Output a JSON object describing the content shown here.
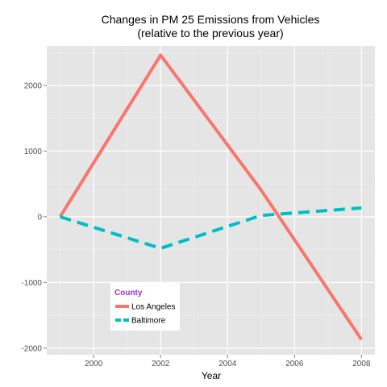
{
  "chart_data": {
    "type": "line",
    "title": "Changes in PM 25 Emissions from Vehicles",
    "subtitle": "(relative to the previous year)",
    "xlabel": "Year",
    "ylabel": "",
    "xlim": [
      1998.6,
      2008.4
    ],
    "ylim": [
      -2100,
      2600
    ],
    "x_ticks": [
      2000,
      2002,
      2004,
      2006,
      2008
    ],
    "y_ticks": [
      -2000,
      -1000,
      0,
      1000,
      2000
    ],
    "grid": true,
    "legend": {
      "title": "County",
      "placement": "bottom-left-inside"
    },
    "x": [
      1999,
      2002,
      2005,
      2008
    ],
    "series": [
      {
        "name": "Los Angeles",
        "values": [
          0,
          2460,
          408,
          -1870
        ],
        "color": "#f8766d",
        "style": "solid"
      },
      {
        "name": "Baltimore",
        "values": [
          0,
          -480,
          20,
          135
        ],
        "color": "#00bfc4",
        "style": "dashed"
      }
    ]
  }
}
